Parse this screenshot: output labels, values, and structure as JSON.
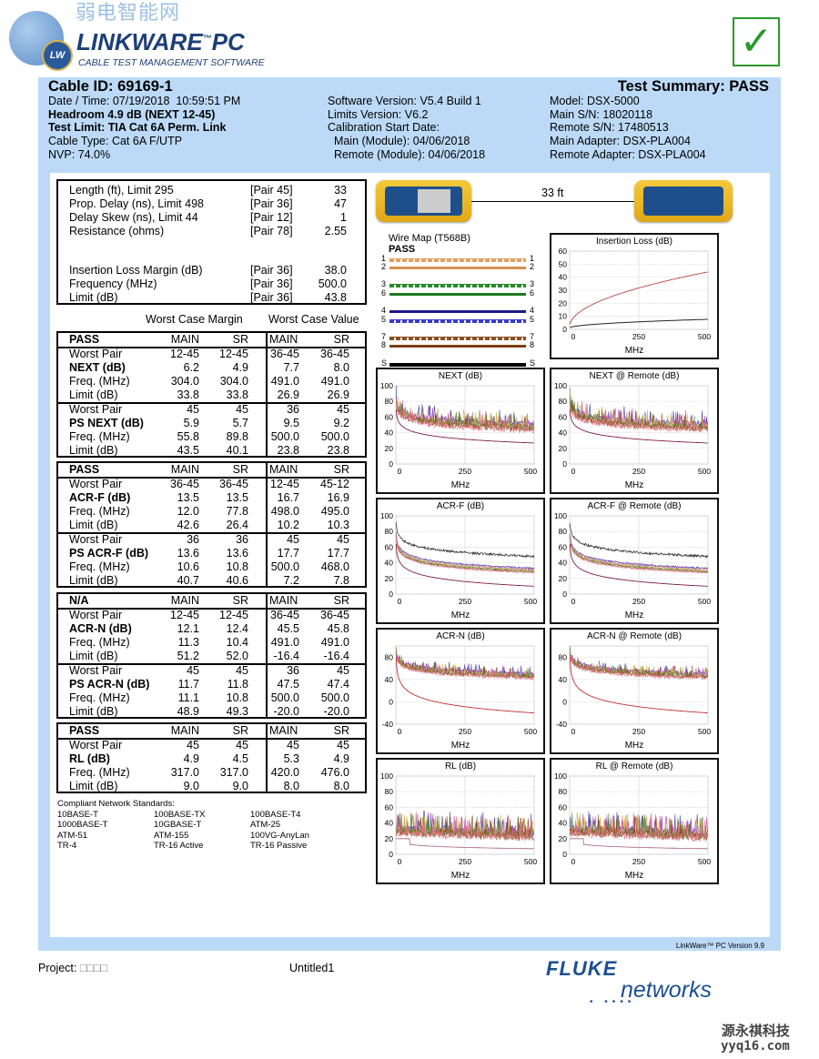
{
  "logo": {
    "product": "LINKWARE",
    "tm": "™",
    "suffix": "PC",
    "tagline": "CABLE TEST MANAGEMENT SOFTWARE",
    "badge": "LW",
    "watermark": "弱电智能网"
  },
  "pass_icon": "checkmark-icon",
  "colors": {
    "panel": "#bcdaf7",
    "pass_green": "#2a9a2a",
    "fluke_blue": "#1d4f91"
  },
  "header": {
    "cable_id": "Cable ID: 69169-1",
    "summary": "Test Summary: PASS",
    "col1": [
      "Date / Time: 07/19/2018  10:59:51 PM",
      "Headroom 4.9 dB (NEXT 12-45)",
      "Test Limit: TIA Cat 6A Perm. Link",
      "Cable Type: Cat 6A F/UTP",
      "NVP: 74.0%"
    ],
    "col2": [
      "Software Version: V5.4 Build 1",
      "Limits Version: V6.2",
      "Calibration Start Date:",
      "  Main (Module): 04/06/2018",
      "  Remote (Module): 04/06/2018"
    ],
    "col3": [
      "Model: DSX-5000",
      "Main S/N: 18020118",
      "Remote S/N: 17480513",
      "Main Adapter: DSX-PLA004",
      "Remote Adapter: DSX-PLA004"
    ]
  },
  "summary_table": [
    {
      "label": "Length (ft), Limit 295",
      "pair": "[Pair 45]",
      "value": "33"
    },
    {
      "label": "Prop. Delay (ns), Limit 498",
      "pair": "[Pair 36]",
      "value": "47"
    },
    {
      "label": "Delay Skew (ns), Limit 44",
      "pair": "[Pair 12]",
      "value": "1"
    },
    {
      "label": "Resistance (ohms)",
      "pair": "[Pair 78]",
      "value": "2.55"
    },
    {
      "label": "Insertion Loss Margin (dB)",
      "pair": "[Pair 36]",
      "value": "38.0"
    },
    {
      "label": "Frequency (MHz)",
      "pair": "[Pair 36]",
      "value": "500.0"
    },
    {
      "label": "Limit (dB)",
      "pair": "[Pair 36]",
      "value": "43.8"
    }
  ],
  "worst_case_margin": "Worst Case Margin",
  "worst_case_value": "Worst Case Value",
  "result_tables": [
    {
      "status": "PASS",
      "cols": [
        "MAIN",
        "SR",
        "MAIN",
        "SR"
      ],
      "groups": [
        [
          [
            "Worst Pair",
            "12-45",
            "12-45",
            "36-45",
            "36-45"
          ],
          [
            "NEXT (dB)",
            "6.2",
            "4.9",
            "7.7",
            "8.0"
          ],
          [
            "Freq. (MHz)",
            "304.0",
            "304.0",
            "491.0",
            "491.0"
          ],
          [
            "Limit (dB)",
            "33.8",
            "33.8",
            "26.9",
            "26.9"
          ]
        ],
        [
          [
            "Worst Pair",
            "45",
            "45",
            "36",
            "45"
          ],
          [
            "PS NEXT (dB)",
            "5.9",
            "5.7",
            "9.5",
            "9.2"
          ],
          [
            "Freq. (MHz)",
            "55.8",
            "89.8",
            "500.0",
            "500.0"
          ],
          [
            "Limit (dB)",
            "43.5",
            "40.1",
            "23.8",
            "23.8"
          ]
        ]
      ]
    },
    {
      "status": "PASS",
      "cols": [
        "MAIN",
        "SR",
        "MAIN",
        "SR"
      ],
      "groups": [
        [
          [
            "Worst Pair",
            "36-45",
            "36-45",
            "12-45",
            "45-12"
          ],
          [
            "ACR-F (dB)",
            "13.5",
            "13.5",
            "16.7",
            "16.9"
          ],
          [
            "Freq. (MHz)",
            "12.0",
            "77.8",
            "498.0",
            "495.0"
          ],
          [
            "Limit (dB)",
            "42.6",
            "26.4",
            "10.2",
            "10.3"
          ]
        ],
        [
          [
            "Worst Pair",
            "36",
            "36",
            "45",
            "45"
          ],
          [
            "PS ACR-F (dB)",
            "13.6",
            "13.6",
            "17.7",
            "17.7"
          ],
          [
            "Freq. (MHz)",
            "10.6",
            "10.8",
            "500.0",
            "468.0"
          ],
          [
            "Limit (dB)",
            "40.7",
            "40.6",
            "7.2",
            "7.8"
          ]
        ]
      ]
    },
    {
      "status": "N/A",
      "cols": [
        "MAIN",
        "SR",
        "MAIN",
        "SR"
      ],
      "groups": [
        [
          [
            "Worst Pair",
            "12-45",
            "12-45",
            "36-45",
            "36-45"
          ],
          [
            "ACR-N (dB)",
            "12.1",
            "12.4",
            "45.5",
            "45.8"
          ],
          [
            "Freq. (MHz)",
            "11.3",
            "10.4",
            "491.0",
            "491.0"
          ],
          [
            "Limit (dB)",
            "51.2",
            "52.0",
            "-16.4",
            "-16.4"
          ]
        ],
        [
          [
            "Worst Pair",
            "45",
            "45",
            "36",
            "45"
          ],
          [
            "PS ACR-N (dB)",
            "11.7",
            "11.8",
            "47.5",
            "47.4"
          ],
          [
            "Freq. (MHz)",
            "11.1",
            "10.8",
            "500.0",
            "500.0"
          ],
          [
            "Limit (dB)",
            "48.9",
            "49.3",
            "-20.0",
            "-20.0"
          ]
        ]
      ]
    },
    {
      "status": "PASS",
      "cols": [
        "MAIN",
        "SR",
        "MAIN",
        "SR"
      ],
      "groups": [
        [
          [
            "Worst Pair",
            "45",
            "45",
            "45",
            "45"
          ],
          [
            "RL (dB)",
            "4.9",
            "4.5",
            "5.3",
            "4.9"
          ],
          [
            "Freq. (MHz)",
            "317.0",
            "317.0",
            "420.0",
            "476.0"
          ],
          [
            "Limit (dB)",
            "9.0",
            "9.0",
            "8.0",
            "8.0"
          ]
        ]
      ]
    }
  ],
  "standards": {
    "title": "Compliant Network Standards:",
    "items": [
      "10BASE-T",
      "100BASE-TX",
      "100BASE-T4",
      "1000BASE-T",
      "10GBASE-T",
      "ATM-25",
      "ATM-51",
      "ATM-155",
      "100VG-AnyLan",
      "TR-4",
      "TR-16 Active",
      "TR-16 Passive"
    ]
  },
  "link": {
    "length": "33 ft"
  },
  "wire_map": {
    "title": "Wire Map (T568B)",
    "status": "PASS",
    "pins": [
      "1",
      "2",
      "3",
      "6",
      "4",
      "5",
      "7",
      "8",
      "S"
    ]
  },
  "charts": [
    {
      "title": "Insertion Loss (dB)",
      "xlabel": "MHz",
      "xticks": [
        "0",
        "250",
        "500"
      ],
      "yticks": [
        "0",
        "10",
        "20",
        "30",
        "40",
        "50",
        "60"
      ],
      "ylim": [
        0,
        60
      ]
    },
    {
      "title": "NEXT (dB)",
      "xlabel": "MHz",
      "xticks": [
        "0",
        "250",
        "500"
      ],
      "yticks": [
        "0",
        "20",
        "40",
        "60",
        "80",
        "100"
      ],
      "ylim": [
        0,
        100
      ]
    },
    {
      "title": "NEXT @ Remote (dB)",
      "xlabel": "MHz",
      "xticks": [
        "0",
        "250",
        "500"
      ],
      "yticks": [
        "0",
        "20",
        "40",
        "60",
        "80",
        "100"
      ],
      "ylim": [
        0,
        100
      ]
    },
    {
      "title": "ACR-F (dB)",
      "xlabel": "MHz",
      "xticks": [
        "0",
        "250",
        "500"
      ],
      "yticks": [
        "0",
        "20",
        "40",
        "60",
        "80",
        "100"
      ],
      "ylim": [
        0,
        100
      ]
    },
    {
      "title": "ACR-F @ Remote (dB)",
      "xlabel": "MHz",
      "xticks": [
        "0",
        "250",
        "500"
      ],
      "yticks": [
        "0",
        "20",
        "40",
        "60",
        "80",
        "100"
      ],
      "ylim": [
        0,
        100
      ]
    },
    {
      "title": "ACR-N (dB)",
      "xlabel": "MHz",
      "xticks": [
        "0",
        "250",
        "500"
      ],
      "yticks": [
        "-40",
        "0",
        "40",
        "80"
      ],
      "ylim": [
        -40,
        100
      ]
    },
    {
      "title": "ACR-N @ Remote (dB)",
      "xlabel": "MHz",
      "xticks": [
        "0",
        "250",
        "500"
      ],
      "yticks": [
        "-40",
        "0",
        "40",
        "80"
      ],
      "ylim": [
        -40,
        100
      ]
    },
    {
      "title": "RL (dB)",
      "xlabel": "MHz",
      "xticks": [
        "0",
        "250",
        "500"
      ],
      "yticks": [
        "0",
        "20",
        "40",
        "60",
        "80",
        "100"
      ],
      "ylim": [
        0,
        100
      ]
    },
    {
      "title": "RL @ Remote (dB)",
      "xlabel": "MHz",
      "xticks": [
        "0",
        "250",
        "500"
      ],
      "yticks": [
        "0",
        "20",
        "40",
        "60",
        "80",
        "100"
      ],
      "ylim": [
        0,
        100
      ]
    }
  ],
  "footer": {
    "version": "LinkWare™ PC Version 9.9",
    "project_label": "Project:",
    "project_value": "□□□□",
    "file": "Untitled1",
    "brand_top": "FLUKE",
    "brand_bottom": "networks",
    "watermark_cn": "源永祺科技",
    "watermark_url": "yyq16.com"
  }
}
